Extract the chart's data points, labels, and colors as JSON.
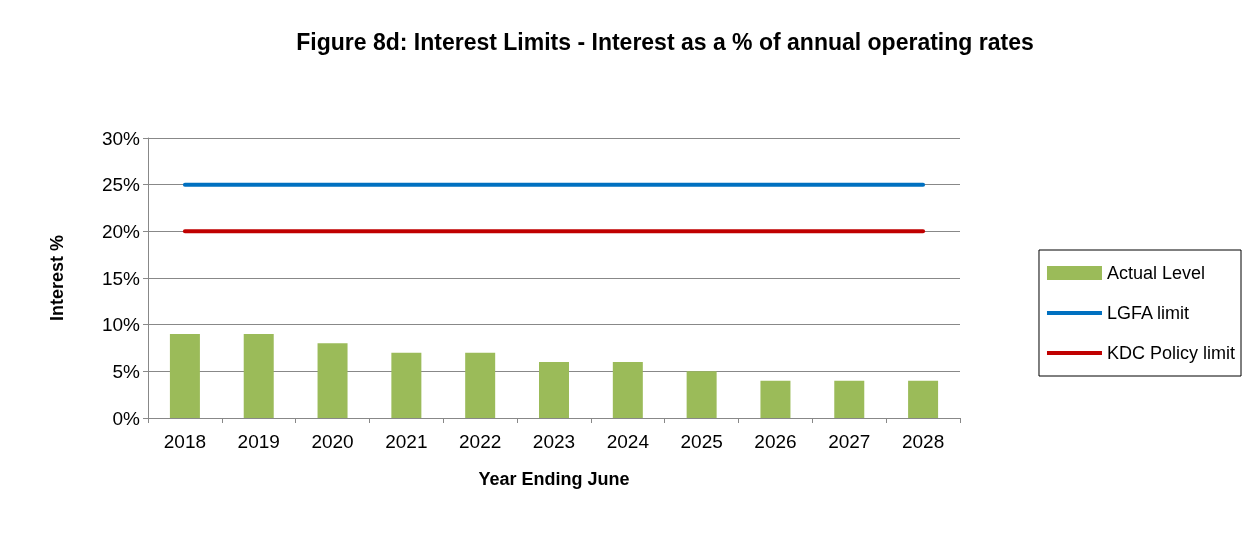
{
  "chart_data": {
    "type": "bar",
    "title": "Figure 8d: Interest Limits - Interest as a % of annual operating rates",
    "categories": [
      "2018",
      "2019",
      "2020",
      "2021",
      "2022",
      "2023",
      "2024",
      "2025",
      "2026",
      "2027",
      "2028"
    ],
    "series": [
      {
        "name": "Actual Level",
        "color": "#9bbb59",
        "values": [
          9,
          9,
          8,
          7,
          7,
          6,
          6,
          5,
          4,
          4,
          4
        ]
      },
      {
        "name": "LGFA limit",
        "type": "line",
        "color": "#0070c0",
        "values": [
          25,
          25,
          25,
          25,
          25,
          25,
          25,
          25,
          25,
          25,
          25
        ]
      },
      {
        "name": "KDC Policy limit",
        "type": "line",
        "color": "#c00000",
        "values": [
          20,
          20,
          20,
          20,
          20,
          20,
          20,
          20,
          20,
          20,
          20
        ]
      }
    ],
    "xlabel": "Year Ending June",
    "ylabel": "Interest %",
    "ylim": [
      0,
      30
    ],
    "yticks": [
      {
        "value": 0,
        "label": "0%"
      },
      {
        "value": 5,
        "label": "5%"
      },
      {
        "value": 10,
        "label": "10%"
      },
      {
        "value": 15,
        "label": "15%"
      },
      {
        "value": 20,
        "label": "20%"
      },
      {
        "value": 25,
        "label": "25%"
      },
      {
        "value": 30,
        "label": "30%"
      }
    ],
    "grid": "y",
    "legend": "right",
    "marker": "none",
    "line_style": "solid"
  }
}
